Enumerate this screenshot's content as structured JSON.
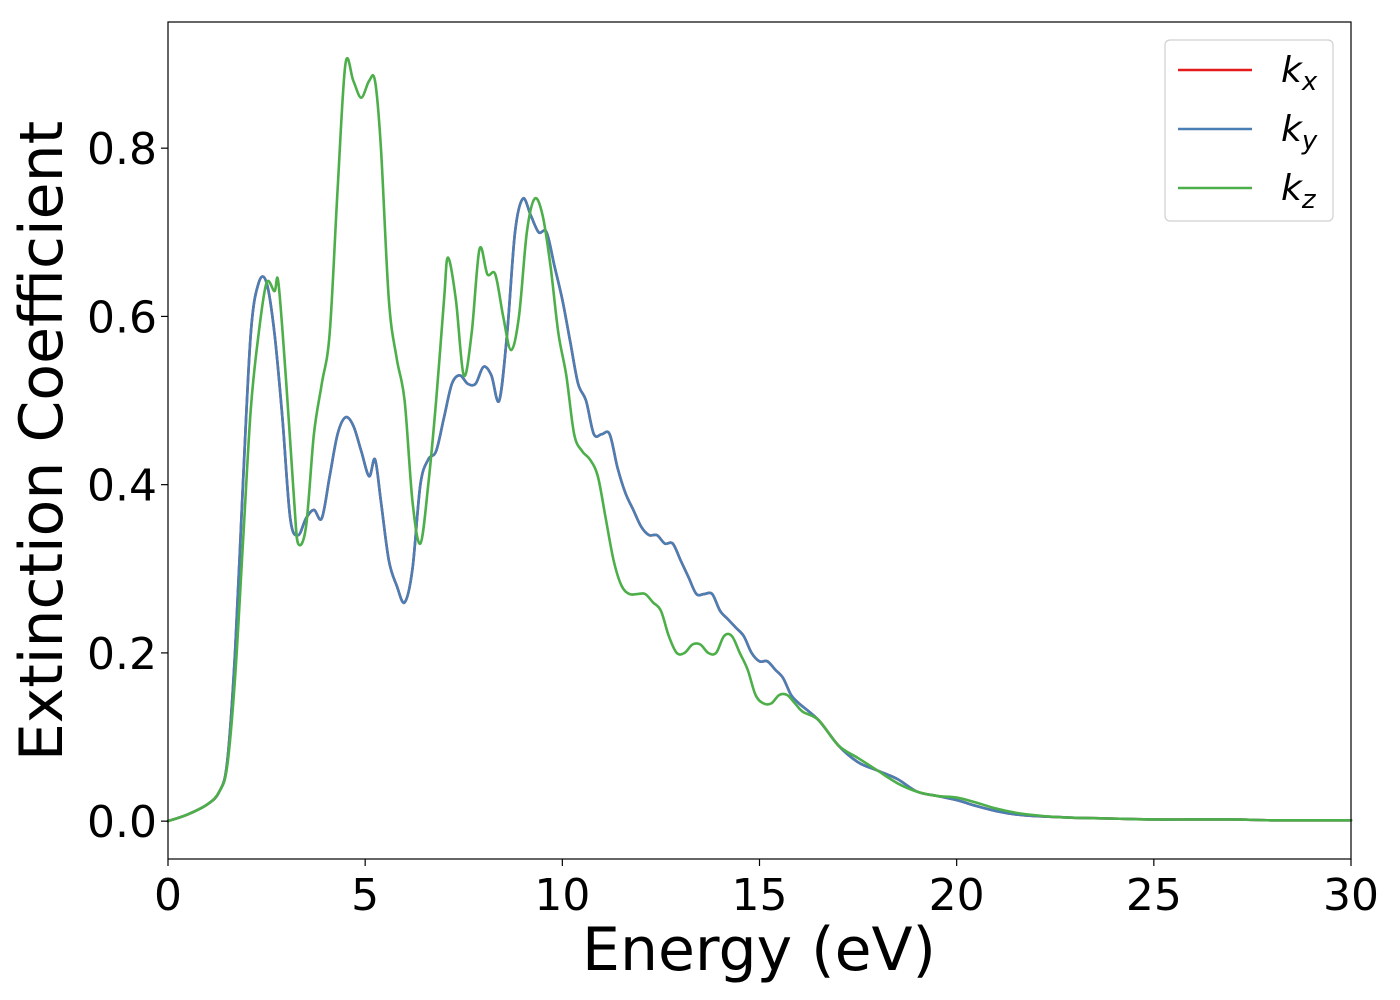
{
  "chart_data": {
    "type": "line",
    "title": "",
    "xlabel": "Energy (eV)",
    "ylabel": "Extinction Coefficient",
    "xlim": [
      0,
      30
    ],
    "ylim": [
      -0.045,
      0.95
    ],
    "xticks": [
      0,
      5,
      10,
      15,
      20,
      25,
      30
    ],
    "yticks": [
      0.0,
      0.2,
      0.4,
      0.6,
      0.8
    ],
    "xtick_labels": [
      "0",
      "5",
      "10",
      "15",
      "20",
      "25",
      "30"
    ],
    "ytick_labels": [
      "0.0",
      "0.2",
      "0.4",
      "0.6",
      "0.8"
    ],
    "grid": false,
    "legend_position": "top-right",
    "series": [
      {
        "name": "k_x",
        "label_base": "k",
        "label_sub": "x",
        "color": "#e41a1c",
        "x": [
          0,
          0.5,
          1.0,
          1.3,
          1.5,
          1.7,
          1.9,
          2.1,
          2.3,
          2.5,
          2.7,
          2.9,
          3.1,
          3.3,
          3.5,
          3.7,
          3.9,
          4.1,
          4.3,
          4.5,
          4.7,
          4.9,
          5.1,
          5.25,
          5.4,
          5.6,
          5.8,
          6.0,
          6.2,
          6.4,
          6.6,
          6.8,
          7.0,
          7.2,
          7.4,
          7.6,
          7.8,
          8.0,
          8.2,
          8.4,
          8.6,
          8.8,
          9.0,
          9.2,
          9.4,
          9.6,
          9.8,
          10.0,
          10.2,
          10.4,
          10.6,
          10.8,
          11.0,
          11.2,
          11.4,
          11.6,
          11.8,
          12.0,
          12.2,
          12.4,
          12.6,
          12.8,
          13.0,
          13.2,
          13.4,
          13.6,
          13.8,
          14.0,
          14.2,
          14.4,
          14.6,
          14.8,
          15.0,
          15.2,
          15.4,
          15.6,
          15.8,
          16.0,
          16.5,
          17.0,
          17.5,
          18.0,
          18.5,
          19.0,
          19.5,
          20.0,
          20.5,
          21.0,
          21.5,
          22.0,
          22.5,
          23.0,
          24.0,
          25.0,
          26.0,
          27.0,
          28.0,
          29.0,
          30.0
        ],
        "y": [
          0.0,
          0.008,
          0.02,
          0.035,
          0.07,
          0.2,
          0.4,
          0.58,
          0.64,
          0.64,
          0.58,
          0.48,
          0.36,
          0.34,
          0.36,
          0.37,
          0.36,
          0.41,
          0.46,
          0.48,
          0.47,
          0.44,
          0.41,
          0.43,
          0.38,
          0.31,
          0.28,
          0.26,
          0.3,
          0.4,
          0.43,
          0.44,
          0.48,
          0.52,
          0.53,
          0.52,
          0.52,
          0.54,
          0.53,
          0.5,
          0.58,
          0.7,
          0.74,
          0.72,
          0.7,
          0.7,
          0.66,
          0.62,
          0.57,
          0.52,
          0.5,
          0.46,
          0.46,
          0.46,
          0.42,
          0.39,
          0.37,
          0.35,
          0.34,
          0.34,
          0.33,
          0.33,
          0.31,
          0.29,
          0.27,
          0.27,
          0.27,
          0.25,
          0.24,
          0.23,
          0.22,
          0.2,
          0.19,
          0.19,
          0.18,
          0.17,
          0.15,
          0.14,
          0.12,
          0.09,
          0.07,
          0.06,
          0.05,
          0.035,
          0.03,
          0.025,
          0.018,
          0.012,
          0.008,
          0.006,
          0.005,
          0.004,
          0.003,
          0.002,
          0.002,
          0.002,
          0.001,
          0.001,
          0.001
        ]
      },
      {
        "name": "k_y",
        "label_base": "k",
        "label_sub": "y",
        "color": "#4a7fb5",
        "x": [
          0,
          0.5,
          1.0,
          1.3,
          1.5,
          1.7,
          1.9,
          2.1,
          2.3,
          2.5,
          2.7,
          2.9,
          3.1,
          3.3,
          3.5,
          3.7,
          3.9,
          4.1,
          4.3,
          4.5,
          4.7,
          4.9,
          5.1,
          5.25,
          5.4,
          5.6,
          5.8,
          6.0,
          6.2,
          6.4,
          6.6,
          6.8,
          7.0,
          7.2,
          7.4,
          7.6,
          7.8,
          8.0,
          8.2,
          8.4,
          8.6,
          8.8,
          9.0,
          9.2,
          9.4,
          9.6,
          9.8,
          10.0,
          10.2,
          10.4,
          10.6,
          10.8,
          11.0,
          11.2,
          11.4,
          11.6,
          11.8,
          12.0,
          12.2,
          12.4,
          12.6,
          12.8,
          13.0,
          13.2,
          13.4,
          13.6,
          13.8,
          14.0,
          14.2,
          14.4,
          14.6,
          14.8,
          15.0,
          15.2,
          15.4,
          15.6,
          15.8,
          16.0,
          16.5,
          17.0,
          17.5,
          18.0,
          18.5,
          19.0,
          19.5,
          20.0,
          20.5,
          21.0,
          21.5,
          22.0,
          22.5,
          23.0,
          24.0,
          25.0,
          26.0,
          27.0,
          28.0,
          29.0,
          30.0
        ],
        "y": [
          0.0,
          0.008,
          0.02,
          0.035,
          0.07,
          0.2,
          0.4,
          0.58,
          0.64,
          0.64,
          0.58,
          0.48,
          0.36,
          0.34,
          0.36,
          0.37,
          0.36,
          0.41,
          0.46,
          0.48,
          0.47,
          0.44,
          0.41,
          0.43,
          0.38,
          0.31,
          0.28,
          0.26,
          0.3,
          0.4,
          0.43,
          0.44,
          0.48,
          0.52,
          0.53,
          0.52,
          0.52,
          0.54,
          0.53,
          0.5,
          0.58,
          0.7,
          0.74,
          0.72,
          0.7,
          0.7,
          0.66,
          0.62,
          0.57,
          0.52,
          0.5,
          0.46,
          0.46,
          0.46,
          0.42,
          0.39,
          0.37,
          0.35,
          0.34,
          0.34,
          0.33,
          0.33,
          0.31,
          0.29,
          0.27,
          0.27,
          0.27,
          0.25,
          0.24,
          0.23,
          0.22,
          0.2,
          0.19,
          0.19,
          0.18,
          0.17,
          0.15,
          0.14,
          0.12,
          0.09,
          0.07,
          0.06,
          0.05,
          0.035,
          0.03,
          0.025,
          0.018,
          0.012,
          0.008,
          0.006,
          0.005,
          0.004,
          0.003,
          0.002,
          0.002,
          0.002,
          0.001,
          0.001,
          0.001
        ]
      },
      {
        "name": "k_z",
        "label_base": "k",
        "label_sub": "z",
        "color": "#4daf4a",
        "x": [
          0,
          0.5,
          1.0,
          1.3,
          1.5,
          1.7,
          1.9,
          2.1,
          2.3,
          2.5,
          2.7,
          2.8,
          3.0,
          3.2,
          3.3,
          3.5,
          3.7,
          3.9,
          4.1,
          4.3,
          4.5,
          4.7,
          4.9,
          5.1,
          5.25,
          5.4,
          5.6,
          5.8,
          6.0,
          6.2,
          6.4,
          6.6,
          6.8,
          7.0,
          7.1,
          7.3,
          7.5,
          7.7,
          7.9,
          8.1,
          8.3,
          8.5,
          8.7,
          8.9,
          9.1,
          9.3,
          9.5,
          9.7,
          9.9,
          10.1,
          10.3,
          10.5,
          10.7,
          10.9,
          11.1,
          11.3,
          11.5,
          11.7,
          11.9,
          12.1,
          12.3,
          12.5,
          12.7,
          12.9,
          13.1,
          13.3,
          13.5,
          13.7,
          13.9,
          14.1,
          14.3,
          14.5,
          14.7,
          14.9,
          15.1,
          15.3,
          15.5,
          15.7,
          15.9,
          16.1,
          16.5,
          17.0,
          17.5,
          18.0,
          18.5,
          19.0,
          19.5,
          20.0,
          20.5,
          21.0,
          21.5,
          22.0,
          22.5,
          23.0,
          24.0,
          25.0,
          26.0,
          27.0,
          28.0,
          29.0,
          30.0
        ],
        "y": [
          0.0,
          0.008,
          0.02,
          0.035,
          0.065,
          0.17,
          0.33,
          0.49,
          0.58,
          0.64,
          0.63,
          0.64,
          0.52,
          0.38,
          0.33,
          0.35,
          0.46,
          0.52,
          0.58,
          0.75,
          0.9,
          0.88,
          0.86,
          0.88,
          0.88,
          0.8,
          0.62,
          0.55,
          0.5,
          0.38,
          0.33,
          0.4,
          0.5,
          0.62,
          0.67,
          0.62,
          0.53,
          0.58,
          0.68,
          0.65,
          0.65,
          0.6,
          0.56,
          0.6,
          0.7,
          0.74,
          0.72,
          0.66,
          0.58,
          0.53,
          0.46,
          0.44,
          0.43,
          0.41,
          0.36,
          0.31,
          0.28,
          0.27,
          0.27,
          0.27,
          0.26,
          0.25,
          0.22,
          0.2,
          0.2,
          0.21,
          0.21,
          0.2,
          0.2,
          0.22,
          0.22,
          0.2,
          0.18,
          0.15,
          0.14,
          0.14,
          0.15,
          0.15,
          0.14,
          0.13,
          0.12,
          0.09,
          0.075,
          0.06,
          0.045,
          0.035,
          0.03,
          0.028,
          0.022,
          0.015,
          0.01,
          0.007,
          0.005,
          0.004,
          0.003,
          0.002,
          0.002,
          0.002,
          0.001,
          0.001,
          0.001
        ]
      }
    ]
  }
}
